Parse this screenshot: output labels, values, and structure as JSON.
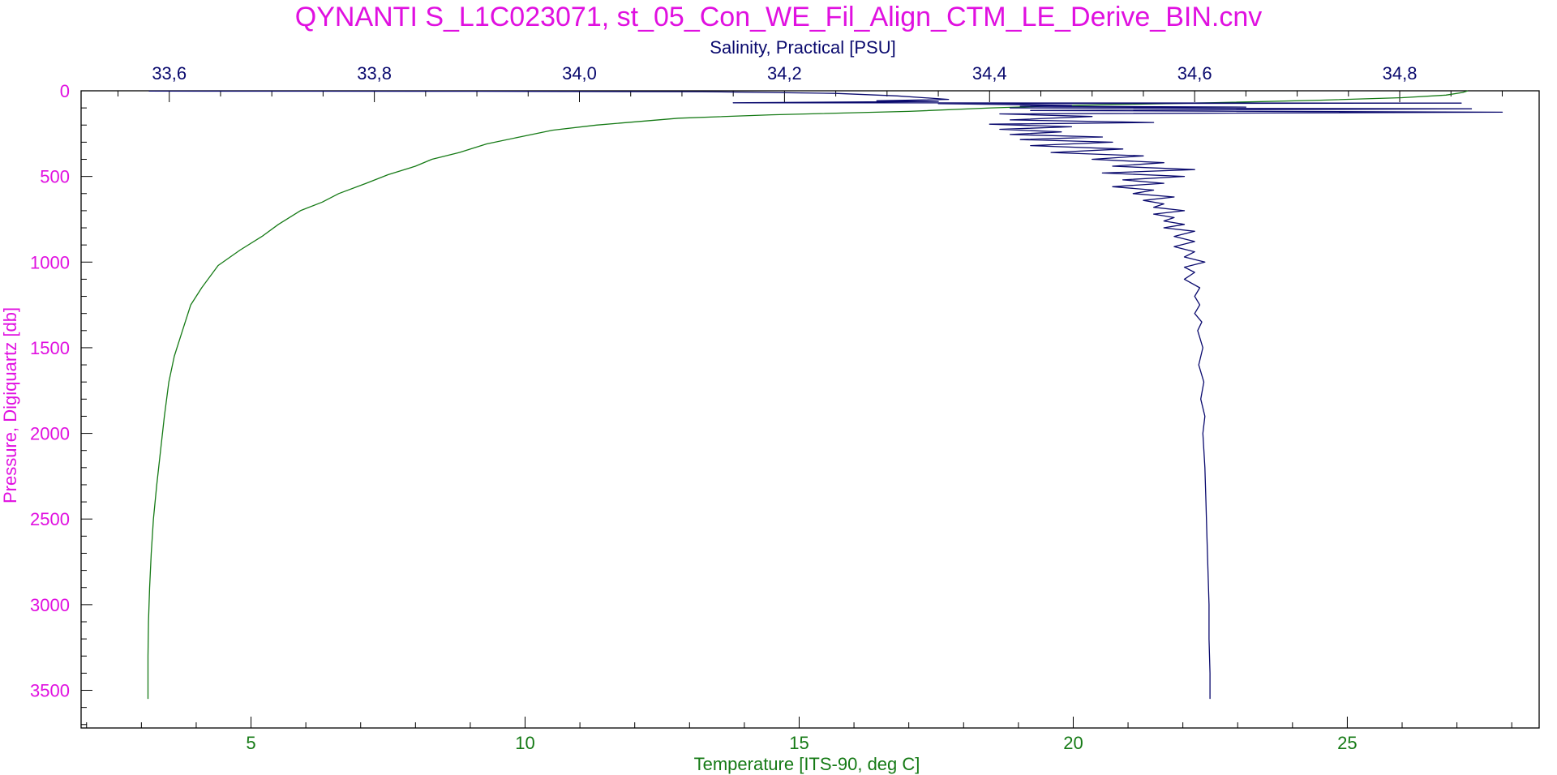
{
  "chart_data": {
    "type": "line",
    "title": "QYNANTI S_L1C023071, st_05_Con_WE_Fil_Align_CTM_LE_Derive_BIN.cnv",
    "y_axis": {
      "label": "Pressure, Digiquartz [db]",
      "ticks": [
        "0",
        "500",
        "1000",
        "1500",
        "2000",
        "2500",
        "3000",
        "3500"
      ],
      "range": [
        0,
        3720
      ],
      "inverted": true,
      "color": "#e010e0"
    },
    "x_axis_top": {
      "label": "Salinity, Practical [PSU]",
      "ticks": [
        "33,6",
        "33,8",
        "34,0",
        "34,2",
        "34,4",
        "34,6",
        "34,8"
      ],
      "range": [
        33.514,
        34.936
      ],
      "color": "#0a0a6e"
    },
    "x_axis_bottom": {
      "label": "Temperature [ITS-90, deg C]",
      "ticks": [
        "5",
        "10",
        "15",
        "20",
        "25"
      ],
      "range": [
        1.9,
        28.5
      ],
      "color": "#157a15"
    },
    "grid": false,
    "series": [
      {
        "quantity": "temperature",
        "axis": "bottom",
        "color": "#157a15",
        "points": [
          [
            27.2,
            0
          ],
          [
            27.1,
            10
          ],
          [
            26.8,
            25
          ],
          [
            26.0,
            40
          ],
          [
            24.5,
            55
          ],
          [
            22.5,
            70
          ],
          [
            20.0,
            85
          ],
          [
            18.5,
            100
          ],
          [
            17.0,
            120
          ],
          [
            14.5,
            140
          ],
          [
            12.8,
            160
          ],
          [
            11.3,
            200
          ],
          [
            10.5,
            230
          ],
          [
            9.9,
            270
          ],
          [
            9.3,
            310
          ],
          [
            8.8,
            360
          ],
          [
            8.3,
            400
          ],
          [
            8.0,
            440
          ],
          [
            7.5,
            490
          ],
          [
            7.1,
            540
          ],
          [
            6.6,
            600
          ],
          [
            6.3,
            650
          ],
          [
            5.9,
            700
          ],
          [
            5.5,
            780
          ],
          [
            5.2,
            850
          ],
          [
            4.8,
            930
          ],
          [
            4.4,
            1020
          ],
          [
            4.1,
            1150
          ],
          [
            3.9,
            1250
          ],
          [
            3.75,
            1400
          ],
          [
            3.6,
            1550
          ],
          [
            3.5,
            1700
          ],
          [
            3.42,
            1900
          ],
          [
            3.35,
            2100
          ],
          [
            3.28,
            2300
          ],
          [
            3.22,
            2500
          ],
          [
            3.18,
            2700
          ],
          [
            3.15,
            2900
          ],
          [
            3.13,
            3100
          ],
          [
            3.12,
            3300
          ],
          [
            3.12,
            3550
          ]
        ]
      },
      {
        "quantity": "salinity",
        "axis": "top",
        "color": "#0a0a6e",
        "points": [
          [
            33.58,
            2
          ],
          [
            33.9,
            3
          ],
          [
            34.12,
            5
          ],
          [
            34.25,
            15
          ],
          [
            34.31,
            30
          ],
          [
            34.36,
            50
          ],
          [
            34.29,
            58
          ],
          [
            34.35,
            62
          ],
          [
            34.15,
            70
          ],
          [
            34.86,
            72
          ],
          [
            34.35,
            75
          ],
          [
            34.48,
            85
          ],
          [
            34.43,
            90
          ],
          [
            34.65,
            95
          ],
          [
            34.42,
            100
          ],
          [
            34.87,
            105
          ],
          [
            34.44,
            115
          ],
          [
            34.9,
            125
          ],
          [
            34.41,
            135
          ],
          [
            34.5,
            150
          ],
          [
            34.42,
            170
          ],
          [
            34.56,
            185
          ],
          [
            34.4,
            195
          ],
          [
            34.48,
            210
          ],
          [
            34.41,
            225
          ],
          [
            34.47,
            240
          ],
          [
            34.42,
            255
          ],
          [
            34.51,
            270
          ],
          [
            34.43,
            285
          ],
          [
            34.52,
            300
          ],
          [
            34.44,
            320
          ],
          [
            34.53,
            340
          ],
          [
            34.46,
            360
          ],
          [
            34.55,
            380
          ],
          [
            34.5,
            400
          ],
          [
            34.57,
            420
          ],
          [
            34.52,
            440
          ],
          [
            34.6,
            460
          ],
          [
            34.51,
            480
          ],
          [
            34.59,
            500
          ],
          [
            34.53,
            520
          ],
          [
            34.57,
            540
          ],
          [
            34.52,
            560
          ],
          [
            34.56,
            580
          ],
          [
            34.54,
            600
          ],
          [
            34.58,
            620
          ],
          [
            34.55,
            640
          ],
          [
            34.57,
            660
          ],
          [
            34.56,
            680
          ],
          [
            34.59,
            700
          ],
          [
            34.56,
            720
          ],
          [
            34.58,
            740
          ],
          [
            34.57,
            760
          ],
          [
            34.59,
            780
          ],
          [
            34.57,
            800
          ],
          [
            34.6,
            820
          ],
          [
            34.58,
            850
          ],
          [
            34.6,
            880
          ],
          [
            34.58,
            910
          ],
          [
            34.6,
            940
          ],
          [
            34.59,
            970
          ],
          [
            34.61,
            1000
          ],
          [
            34.59,
            1030
          ],
          [
            34.6,
            1060
          ],
          [
            34.59,
            1100
          ],
          [
            34.605,
            1150
          ],
          [
            34.6,
            1200
          ],
          [
            34.605,
            1250
          ],
          [
            34.6,
            1300
          ],
          [
            34.607,
            1350
          ],
          [
            34.603,
            1400
          ],
          [
            34.608,
            1500
          ],
          [
            34.604,
            1600
          ],
          [
            34.609,
            1700
          ],
          [
            34.606,
            1800
          ],
          [
            34.61,
            1900
          ],
          [
            34.608,
            2000
          ],
          [
            34.61,
            2200
          ],
          [
            34.611,
            2400
          ],
          [
            34.612,
            2600
          ],
          [
            34.613,
            2800
          ],
          [
            34.614,
            3000
          ],
          [
            34.614,
            3200
          ],
          [
            34.615,
            3400
          ],
          [
            34.615,
            3550
          ]
        ]
      }
    ]
  }
}
